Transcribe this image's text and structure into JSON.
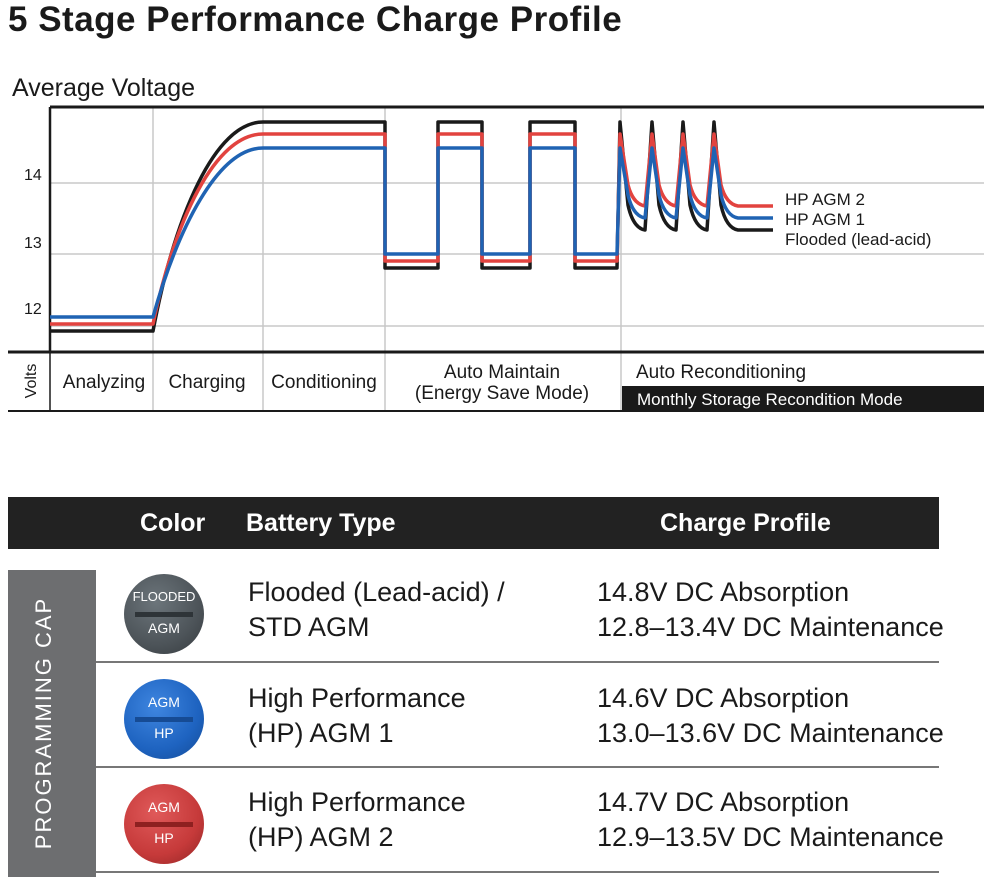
{
  "title": "5 Stage Performance Charge Profile",
  "chart": {
    "ylabel_top": "Average Voltage",
    "ylabel_side": "Volts",
    "y_ticks": [
      "14",
      "13",
      "12"
    ],
    "stages": [
      "Analyzing",
      "Charging",
      "Conditioning",
      "Auto Maintain",
      "(Energy Save Mode)",
      "Auto Reconditioning",
      "Monthly Storage Recondition Mode"
    ],
    "series": [
      {
        "name": "HP AGM 2",
        "color": "#e2433f"
      },
      {
        "name": "HP AGM 1",
        "color": "#1f63b3"
      },
      {
        "name": "Flooded (lead-acid)",
        "color": "#1a1a1a"
      }
    ]
  },
  "chart_data": {
    "type": "line",
    "title": "5 Stage Performance Charge Profile",
    "ylabel": "Average Voltage",
    "y_ticks": [
      12,
      13,
      14
    ],
    "grid": true,
    "legend_placement": "right",
    "stages": [
      "Analyzing",
      "Charging",
      "Conditioning",
      "Auto Maintain (Energy Save Mode)",
      "Auto Reconditioning / Monthly Storage Recondition Mode"
    ],
    "series": [
      {
        "name": "HP AGM 2",
        "absorption": 14.7,
        "maintenance_low": 12.9,
        "maintenance_high": 13.5
      },
      {
        "name": "HP AGM 1",
        "absorption": 14.6,
        "maintenance_low": 13.0,
        "maintenance_high": 13.6
      },
      {
        "name": "Flooded (lead-acid)",
        "absorption": 14.8,
        "maintenance_low": 12.8,
        "maintenance_high": 13.4
      }
    ]
  },
  "table": {
    "headers": {
      "color": "Color",
      "type": "Battery Type",
      "profile": "Charge Profile"
    },
    "side_label": "PROGRAMMING CAP",
    "rows": [
      {
        "cap_top": "FLOODED",
        "cap_bottom": "AGM",
        "cap_color": "#4d5459",
        "bar_color": "#2e3438",
        "type_line1": "Flooded (Lead-acid) /",
        "type_line2": "STD AGM",
        "profile_line1": "14.8V DC Absorption",
        "profile_line2": "12.8–13.4V DC Maintenance"
      },
      {
        "cap_top": "AGM",
        "cap_bottom": "HP",
        "cap_color": "#1e63c0",
        "bar_color": "#164b94",
        "type_line1": "High Performance",
        "type_line2": "(HP) AGM 1",
        "profile_line1": "14.6V DC Absorption",
        "profile_line2": "13.0–13.6V DC Maintenance"
      },
      {
        "cap_top": "AGM",
        "cap_bottom": "HP",
        "cap_color": "#c63a3a",
        "bar_color": "#8e2020",
        "type_line1": "High Performance",
        "type_line2": "(HP) AGM 2",
        "profile_line1": "14.7V DC Absorption",
        "profile_line2": "12.9–13.5V DC Maintenance"
      }
    ]
  }
}
